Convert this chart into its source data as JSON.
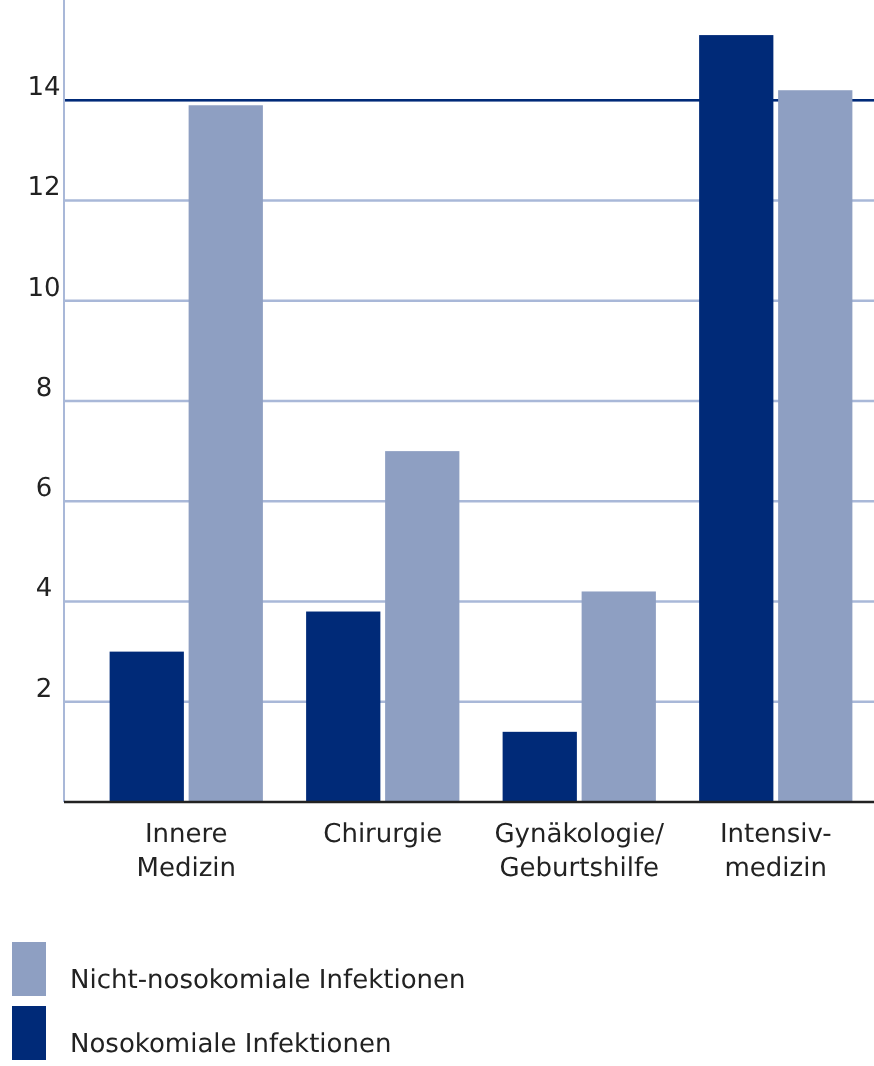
{
  "chart_data": {
    "type": "bar",
    "categories": [
      "Innere\nMedizin",
      "Chirurgie",
      "Gynäkologie/\nGeburtshilfe",
      "Intensiv-\nmedizin"
    ],
    "series": [
      {
        "name": "Nosokomiale Infektionen",
        "color": "#002a78",
        "values": [
          3.0,
          3.8,
          1.4,
          15.3
        ]
      },
      {
        "name": "Nicht-nosokomiale Infektionen",
        "color": "#8e9fc2",
        "values": [
          13.9,
          7.0,
          4.2,
          14.2
        ]
      }
    ],
    "ylim": [
      0,
      16
    ],
    "ref_lines": [
      {
        "axis": "y",
        "value": 14,
        "color": "#002a78"
      }
    ],
    "yticks": [
      2,
      4,
      6,
      8,
      10,
      12,
      14
    ],
    "grid": "y",
    "legend": "bottom"
  }
}
